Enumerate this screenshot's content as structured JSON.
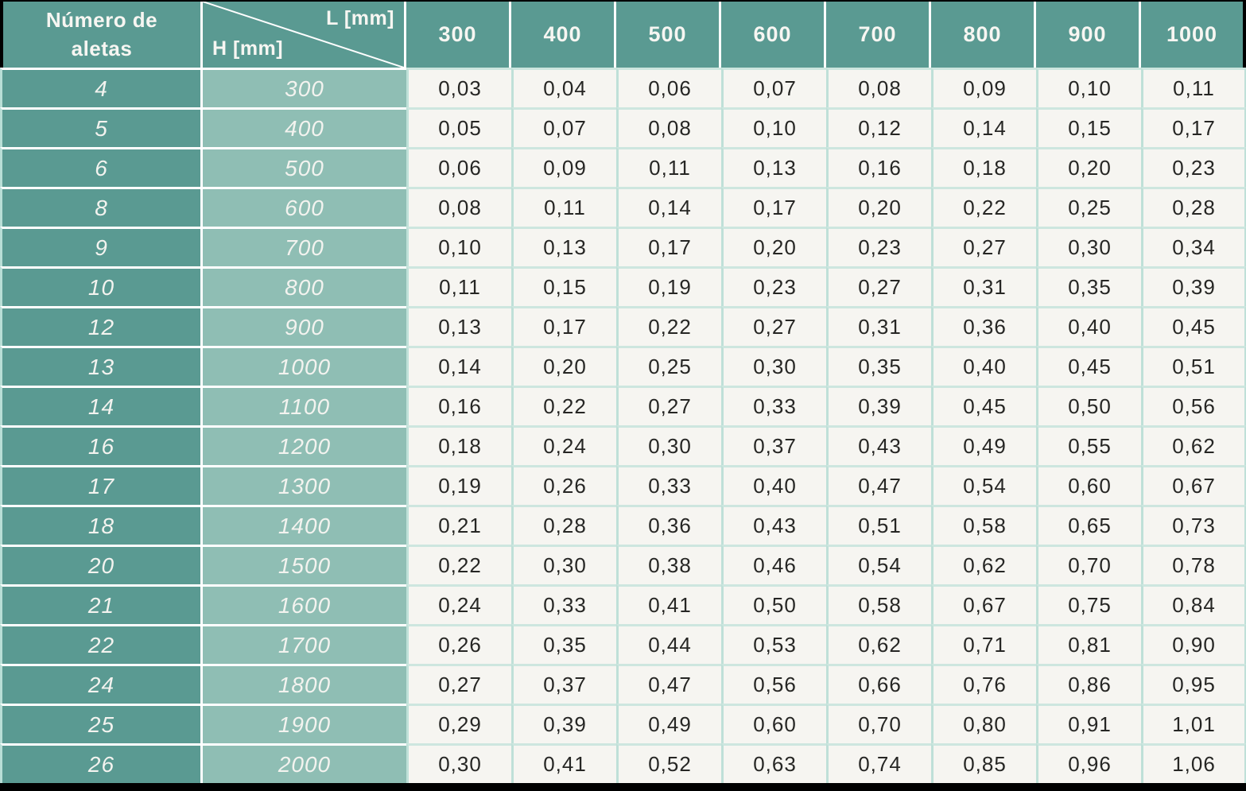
{
  "chart_data": {
    "type": "table",
    "corner": {
      "rows_header_label": "Número de aletas",
      "diag_top_right": "L [mm]",
      "diag_bottom_left": "H [mm]"
    },
    "l_mm": [
      "300",
      "400",
      "500",
      "600",
      "700",
      "800",
      "900",
      "1000"
    ],
    "rows": [
      {
        "numero_de_aletas": "4",
        "h_mm": "300",
        "values": [
          "0,03",
          "0,04",
          "0,06",
          "0,07",
          "0,08",
          "0,09",
          "0,10",
          "0,11"
        ]
      },
      {
        "numero_de_aletas": "5",
        "h_mm": "400",
        "values": [
          "0,05",
          "0,07",
          "0,08",
          "0,10",
          "0,12",
          "0,14",
          "0,15",
          "0,17"
        ]
      },
      {
        "numero_de_aletas": "6",
        "h_mm": "500",
        "values": [
          "0,06",
          "0,09",
          "0,11",
          "0,13",
          "0,16",
          "0,18",
          "0,20",
          "0,23"
        ]
      },
      {
        "numero_de_aletas": "8",
        "h_mm": "600",
        "values": [
          "0,08",
          "0,11",
          "0,14",
          "0,17",
          "0,20",
          "0,22",
          "0,25",
          "0,28"
        ]
      },
      {
        "numero_de_aletas": "9",
        "h_mm": "700",
        "values": [
          "0,10",
          "0,13",
          "0,17",
          "0,20",
          "0,23",
          "0,27",
          "0,30",
          "0,34"
        ]
      },
      {
        "numero_de_aletas": "10",
        "h_mm": "800",
        "values": [
          "0,11",
          "0,15",
          "0,19",
          "0,23",
          "0,27",
          "0,31",
          "0,35",
          "0,39"
        ]
      },
      {
        "numero_de_aletas": "12",
        "h_mm": "900",
        "values": [
          "0,13",
          "0,17",
          "0,22",
          "0,27",
          "0,31",
          "0,36",
          "0,40",
          "0,45"
        ]
      },
      {
        "numero_de_aletas": "13",
        "h_mm": "1000",
        "values": [
          "0,14",
          "0,20",
          "0,25",
          "0,30",
          "0,35",
          "0,40",
          "0,45",
          "0,51"
        ]
      },
      {
        "numero_de_aletas": "14",
        "h_mm": "1100",
        "values": [
          "0,16",
          "0,22",
          "0,27",
          "0,33",
          "0,39",
          "0,45",
          "0,50",
          "0,56"
        ]
      },
      {
        "numero_de_aletas": "16",
        "h_mm": "1200",
        "values": [
          "0,18",
          "0,24",
          "0,30",
          "0,37",
          "0,43",
          "0,49",
          "0,55",
          "0,62"
        ]
      },
      {
        "numero_de_aletas": "17",
        "h_mm": "1300",
        "values": [
          "0,19",
          "0,26",
          "0,33",
          "0,40",
          "0,47",
          "0,54",
          "0,60",
          "0,67"
        ]
      },
      {
        "numero_de_aletas": "18",
        "h_mm": "1400",
        "values": [
          "0,21",
          "0,28",
          "0,36",
          "0,43",
          "0,51",
          "0,58",
          "0,65",
          "0,73"
        ]
      },
      {
        "numero_de_aletas": "20",
        "h_mm": "1500",
        "values": [
          "0,22",
          "0,30",
          "0,38",
          "0,46",
          "0,54",
          "0,62",
          "0,70",
          "0,78"
        ]
      },
      {
        "numero_de_aletas": "21",
        "h_mm": "1600",
        "values": [
          "0,24",
          "0,33",
          "0,41",
          "0,50",
          "0,58",
          "0,67",
          "0,75",
          "0,84"
        ]
      },
      {
        "numero_de_aletas": "22",
        "h_mm": "1700",
        "values": [
          "0,26",
          "0,35",
          "0,44",
          "0,53",
          "0,62",
          "0,71",
          "0,81",
          "0,90"
        ]
      },
      {
        "numero_de_aletas": "24",
        "h_mm": "1800",
        "values": [
          "0,27",
          "0,37",
          "0,47",
          "0,56",
          "0,66",
          "0,76",
          "0,86",
          "0,95"
        ]
      },
      {
        "numero_de_aletas": "25",
        "h_mm": "1900",
        "values": [
          "0,29",
          "0,39",
          "0,49",
          "0,60",
          "0,70",
          "0,80",
          "0,91",
          "1,01"
        ]
      },
      {
        "numero_de_aletas": "26",
        "h_mm": "2000",
        "values": [
          "0,30",
          "0,41",
          "0,52",
          "0,63",
          "0,74",
          "0,85",
          "0,96",
          "1,06"
        ]
      }
    ],
    "layout": {
      "grid": "on",
      "decimal_separator": ","
    },
    "colors": {
      "header_teal": "#5a9a92",
      "h_column_teal": "#8fbeb4",
      "cell_background": "#f6f5f1",
      "cell_grid_mint": "#bfe0d8",
      "teal_separator_white": "#ffffff",
      "frame_black": "#000000",
      "value_text": "#262624",
      "header_text": "#f7f6f2"
    }
  }
}
